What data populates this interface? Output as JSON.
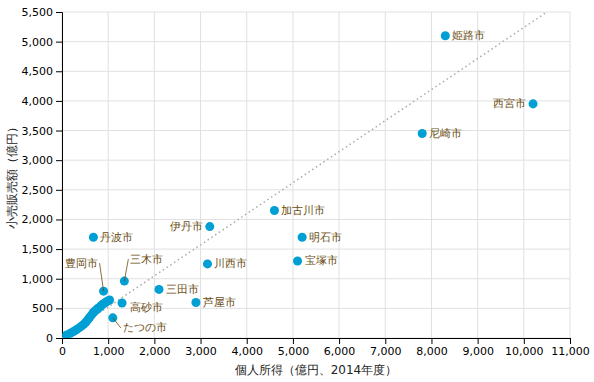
{
  "chart_data": {
    "type": "scatter",
    "x_label": "個人所得（億円、2014年度）",
    "y_label": "小売販売額（億円）",
    "xlim": [
      0,
      11000
    ],
    "ylim": [
      0,
      5500
    ],
    "xticks": [
      0,
      {
        "value": 1000,
        "label": "1,000"
      },
      {
        "value": 2000,
        "label": "2,000"
      },
      {
        "value": 3000,
        "label": "3,000"
      },
      {
        "value": 4000,
        "label": "4,000"
      },
      {
        "value": 5000,
        "label": "5,000"
      },
      {
        "value": 6000,
        "label": "6,000"
      },
      {
        "value": 7000,
        "label": "7,000"
      },
      {
        "value": 8000,
        "label": "8,000"
      },
      {
        "value": 9000,
        "label": "9,000"
      },
      {
        "value": 10000,
        "label": "10,000"
      },
      {
        "value": 11000,
        "label": "11,000"
      }
    ],
    "yticks": [
      0,
      500,
      {
        "value": 1000,
        "label": "1,000"
      },
      {
        "value": 1500,
        "label": "1,500"
      },
      {
        "value": 2000,
        "label": "2,000"
      },
      {
        "value": 2500,
        "label": "2,500"
      },
      {
        "value": 3000,
        "label": "3,000"
      },
      {
        "value": 3500,
        "label": "3,500"
      },
      {
        "value": 4000,
        "label": "4,000"
      },
      {
        "value": 4500,
        "label": "4,500"
      },
      {
        "value": 5000,
        "label": "5,000"
      },
      {
        "value": 5500,
        "label": "5,500"
      }
    ],
    "grid": true,
    "series": [
      {
        "type": "line",
        "line_style": "dotted",
        "color": "#AAAAAA",
        "x": [
          0,
          10500
        ],
        "values": [
          0,
          5500
        ]
      },
      {
        "type": "scatter",
        "marker": "circle",
        "color": "#009FD4",
        "x": [
          8300,
          10200,
          7800,
          4600,
          5200,
          5100,
          3200,
          3150,
          2100,
          2900,
          1350,
          900,
          680,
          1300,
          1100,
          100,
          180,
          250,
          310,
          370,
          420,
          470,
          520,
          560,
          600,
          640,
          680,
          720,
          760,
          800,
          840,
          880,
          940,
          980,
          1030
        ],
        "values": [
          5100,
          3950,
          3450,
          2150,
          1700,
          1300,
          1880,
          1250,
          820,
          600,
          960,
          790,
          1700,
          590,
          340,
          50,
          80,
          110,
          140,
          170,
          200,
          230,
          270,
          310,
          350,
          390,
          430,
          460,
          490,
          510,
          540,
          570,
          600,
          620,
          640
        ]
      }
    ],
    "annotations": [
      {
        "text": "姫路市",
        "x": 8300,
        "y": 5100,
        "color": "#6B4C11"
      },
      {
        "text": "西宮市",
        "x": 10200,
        "y": 3950,
        "color": "#6B4C11"
      },
      {
        "text": "尼崎市",
        "x": 7800,
        "y": 3450,
        "color": "#6B4C11"
      },
      {
        "text": "加古川市",
        "x": 4600,
        "y": 2150,
        "color": "#6B4C11"
      },
      {
        "text": "明石市",
        "x": 5200,
        "y": 1700,
        "color": "#6B4C11"
      },
      {
        "text": "宝塚市",
        "x": 5100,
        "y": 1300,
        "color": "#6B4C11"
      },
      {
        "text": "伊丹市",
        "x": 3200,
        "y": 1880,
        "color": "#6B4C11"
      },
      {
        "text": "川西市",
        "x": 3150,
        "y": 1250,
        "color": "#6B4C11"
      },
      {
        "text": "三田市",
        "x": 2100,
        "y": 820,
        "color": "#6B4C11"
      },
      {
        "text": "芦屋市",
        "x": 2900,
        "y": 600,
        "color": "#6B4C11"
      },
      {
        "text": "三木市",
        "x": 1350,
        "y": 960,
        "color": "#6B4C11"
      },
      {
        "text": "豊岡市",
        "x": 900,
        "y": 790,
        "color": "#6B4C11"
      },
      {
        "text": "丹波市",
        "x": 680,
        "y": 1700,
        "color": "#6B4C11"
      },
      {
        "text": "高砂市",
        "x": 1300,
        "y": 590,
        "color": "#6B4C11"
      },
      {
        "text": "たつの市",
        "x": 1100,
        "y": 340,
        "color": "#6B4C11"
      }
    ]
  }
}
